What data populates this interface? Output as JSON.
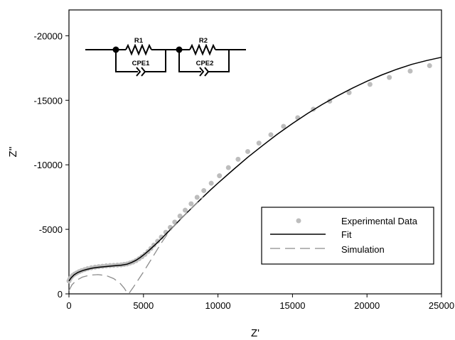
{
  "chart_data": {
    "type": "scatter",
    "xlabel": "Z'",
    "ylabel": "Z''",
    "xlim": [
      0,
      25000
    ],
    "ylim": [
      0,
      -22000
    ],
    "x_ticks": [
      0,
      5000,
      10000,
      15000,
      20000,
      25000
    ],
    "x_tick_labels": [
      "0",
      "5000",
      "10000",
      "15000",
      "20000",
      "25000"
    ],
    "y_ticks": [
      0,
      -5000,
      -10000,
      -15000,
      -20000
    ],
    "y_tick_labels": [
      "0",
      "-5000",
      "-10000",
      "-15000",
      "-20000"
    ],
    "grid": false,
    "legend_position": "bottom-right",
    "legend": [
      {
        "label": "Experimental Data",
        "style": "marker",
        "color": "#bdbdbd"
      },
      {
        "label": "Fit",
        "style": "solid",
        "color": "#000000"
      },
      {
        "label": "Simulation",
        "style": "dashed",
        "color": "#8c8c8c"
      }
    ],
    "series": [
      {
        "name": "Experimental Data",
        "style": "marker",
        "color": "#bdbdbd",
        "x": [
          0,
          60,
          150,
          250,
          380,
          520,
          680,
          850,
          1050,
          1250,
          1500,
          1750,
          2000,
          2250,
          2500,
          2750,
          3000,
          3250,
          3500,
          3700,
          3900,
          4100,
          4300,
          4500,
          4700,
          4900,
          5100,
          5300,
          5500,
          5700,
          5950,
          6200,
          6500,
          6800,
          7100,
          7450,
          7800,
          8200,
          8600,
          9050,
          9550,
          10100,
          10700,
          11350,
          12000,
          12750,
          13550,
          14400,
          15350,
          16400,
          17500,
          18800,
          20200,
          21500,
          22900,
          24200
        ],
        "y": [
          -1000,
          -1150,
          -1300,
          -1420,
          -1530,
          -1620,
          -1720,
          -1800,
          -1880,
          -1950,
          -2020,
          -2070,
          -2110,
          -2140,
          -2170,
          -2190,
          -2210,
          -2230,
          -2250,
          -2280,
          -2320,
          -2390,
          -2470,
          -2580,
          -2720,
          -2880,
          -3060,
          -3280,
          -3520,
          -3780,
          -4080,
          -4400,
          -4770,
          -5150,
          -5560,
          -6030,
          -6480,
          -6980,
          -7480,
          -8000,
          -8570,
          -9150,
          -9780,
          -10430,
          -11030,
          -11680,
          -12330,
          -12980,
          -13650,
          -14310,
          -14930,
          -15590,
          -16230,
          -16770,
          -17260,
          -17680
        ]
      },
      {
        "name": "Fit",
        "style": "solid",
        "color": "#000000",
        "x": [
          0,
          150,
          350,
          600,
          900,
          1200,
          1600,
          2000,
          2500,
          3000,
          3500,
          3900,
          4200,
          4500,
          4800,
          5100,
          5400,
          5800,
          6200,
          6600,
          7000,
          7500,
          8000,
          8500,
          9000,
          9500,
          10000,
          11000,
          12000,
          13000,
          14000,
          15000,
          16000,
          17000,
          18000,
          19000,
          20000,
          21000,
          22000,
          23000,
          24000,
          25000
        ],
        "y": [
          -1000,
          -1250,
          -1480,
          -1660,
          -1800,
          -1900,
          -2000,
          -2060,
          -2120,
          -2170,
          -2220,
          -2300,
          -2430,
          -2600,
          -2830,
          -3100,
          -3400,
          -3830,
          -4270,
          -4740,
          -5200,
          -5800,
          -6380,
          -6950,
          -7500,
          -8050,
          -8580,
          -9600,
          -10580,
          -11500,
          -12380,
          -13200,
          -13970,
          -14680,
          -15330,
          -15930,
          -16480,
          -16970,
          -17400,
          -17780,
          -18080,
          -18330
        ]
      },
      {
        "name": "Simulation",
        "style": "dashed",
        "color": "#8c8c8c",
        "x": [
          0,
          200,
          500,
          900,
          1400,
          1950,
          2500,
          3000,
          3400,
          3700,
          3900,
          4000,
          4100,
          4300,
          4600,
          5000,
          5400,
          5800,
          6200,
          6600,
          7000,
          7500,
          8000,
          8500,
          9000
        ],
        "y": [
          -250,
          -700,
          -1050,
          -1300,
          -1450,
          -1490,
          -1420,
          -1180,
          -850,
          -450,
          -100,
          0,
          -150,
          -480,
          -1000,
          -1700,
          -2450,
          -3200,
          -3950,
          -4620,
          -5200,
          -5800,
          -6380,
          -6950,
          -7500
        ]
      }
    ]
  },
  "inset": {
    "r1_label": "R1",
    "cpe1_label": "CPE1",
    "r2_label": "R2",
    "cpe2_label": "CPE2"
  }
}
